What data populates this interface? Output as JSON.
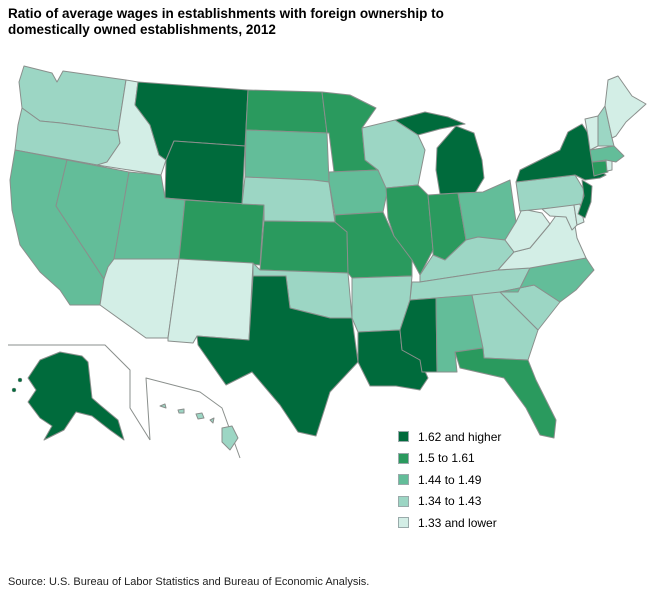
{
  "title": "Ratio of average wages in establishments with foreign ownership to domestically owned establishments, 2012",
  "source": "Source: U.S. Bureau of Labor Statistics and Bureau of Economic Analysis.",
  "colors": {
    "c5": "#006b3c",
    "c4": "#2a9a5e",
    "c3": "#63bd99",
    "c2": "#9cd6c4",
    "c1": "#d3eee6",
    "outline": "#8a8f8c"
  },
  "legend": [
    {
      "label": "1.62 and higher",
      "color": "#006b3c"
    },
    {
      "label": "1.5 to 1.61",
      "color": "#2a9a5e"
    },
    {
      "label": "1.44 to 1.49",
      "color": "#63bd99"
    },
    {
      "label": "1.34 to 1.43",
      "color": "#9cd6c4"
    },
    {
      "label": "1.33 and lower",
      "color": "#d3eee6"
    }
  ],
  "states": {
    "WA": "1.34 to 1.43",
    "OR": "1.34 to 1.43",
    "CA": "1.44 to 1.49",
    "NV": "1.44 to 1.49",
    "ID": "1.33 and lower",
    "MT": "1.62 and higher",
    "WY": "1.62 and higher",
    "UT": "1.44 to 1.49",
    "AZ": "1.33 and lower",
    "NM": "1.33 and lower",
    "CO": "1.5 to 1.61",
    "ND": "1.5 to 1.61",
    "SD": "1.44 to 1.49",
    "NE": "1.34 to 1.43",
    "KS": "1.5 to 1.61",
    "OK": "1.34 to 1.43",
    "TX": "1.62 and higher",
    "MN": "1.5 to 1.61",
    "IA": "1.44 to 1.49",
    "MO": "1.5 to 1.61",
    "AR": "1.34 to 1.43",
    "LA": "1.62 and higher",
    "WI": "1.34 to 1.43",
    "IL": "1.5 to 1.61",
    "MI": "1.62 and higher",
    "IN": "1.5 to 1.61",
    "OH": "1.44 to 1.49",
    "KY": "1.34 to 1.43",
    "TN": "1.34 to 1.43",
    "MS": "1.62 and higher",
    "AL": "1.44 to 1.49",
    "GA": "1.34 to 1.43",
    "FL": "1.5 to 1.61",
    "SC": "1.34 to 1.43",
    "NC": "1.44 to 1.49",
    "VA": "1.33 and lower",
    "WV": "1.33 and lower",
    "PA": "1.34 to 1.43",
    "NY": "1.62 and higher",
    "NJ": "1.62 and higher",
    "DE": "1.33 and lower",
    "MD": "1.33 and lower",
    "CT": "1.5 to 1.61",
    "RI": "1.33 and lower",
    "MA": "1.44 to 1.49",
    "VT": "1.33 and lower",
    "NH": "1.34 to 1.43",
    "ME": "1.33 and lower",
    "AK": "1.62 and higher",
    "HI": "1.34 to 1.43"
  }
}
